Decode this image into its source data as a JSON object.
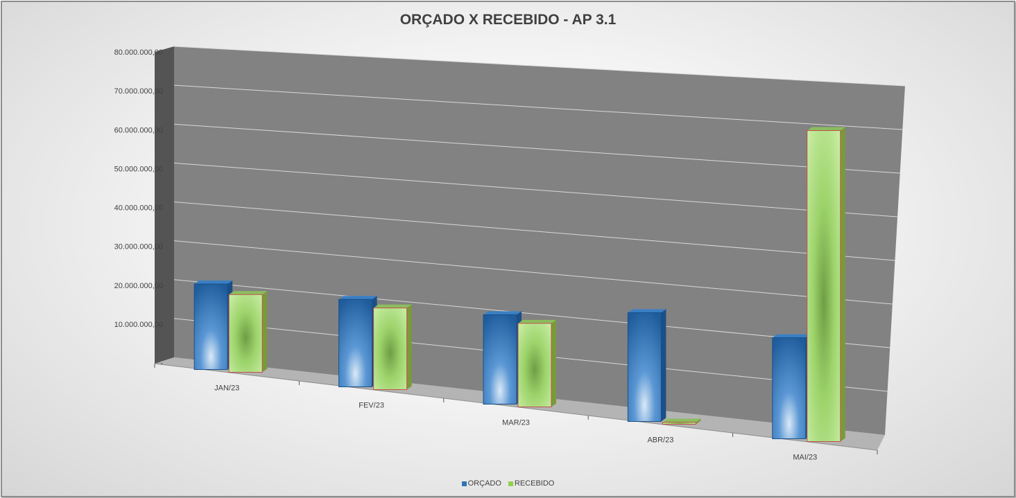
{
  "chart_data": {
    "type": "bar",
    "title": "ORÇADO X RECEBIDO - AP 3.1",
    "categories": [
      "JAN/23",
      "FEV/23",
      "MAR/23",
      "ABR/23",
      "MAI/23"
    ],
    "series": [
      {
        "name": "ORÇADO",
        "values": [
          22000000,
          22500000,
          23000000,
          28000000,
          26000000
        ],
        "color": "#2e75b6"
      },
      {
        "name": "RECEBIDO",
        "values": [
          20000000,
          21000000,
          21500000,
          300000,
          80000000
        ],
        "color": "#92d050"
      }
    ],
    "ylim": [
      0,
      80000000
    ],
    "y_ticks": [
      "-",
      "10.000.000,00",
      "20.000.000,00",
      "30.000.000,00",
      "40.000.000,00",
      "50.000.000,00",
      "60.000.000,00",
      "70.000.000,00",
      "80.000.000,00"
    ],
    "xlabel": "",
    "ylabel": "",
    "grid": true,
    "legend": "bottom",
    "view": "3d-perspective"
  }
}
